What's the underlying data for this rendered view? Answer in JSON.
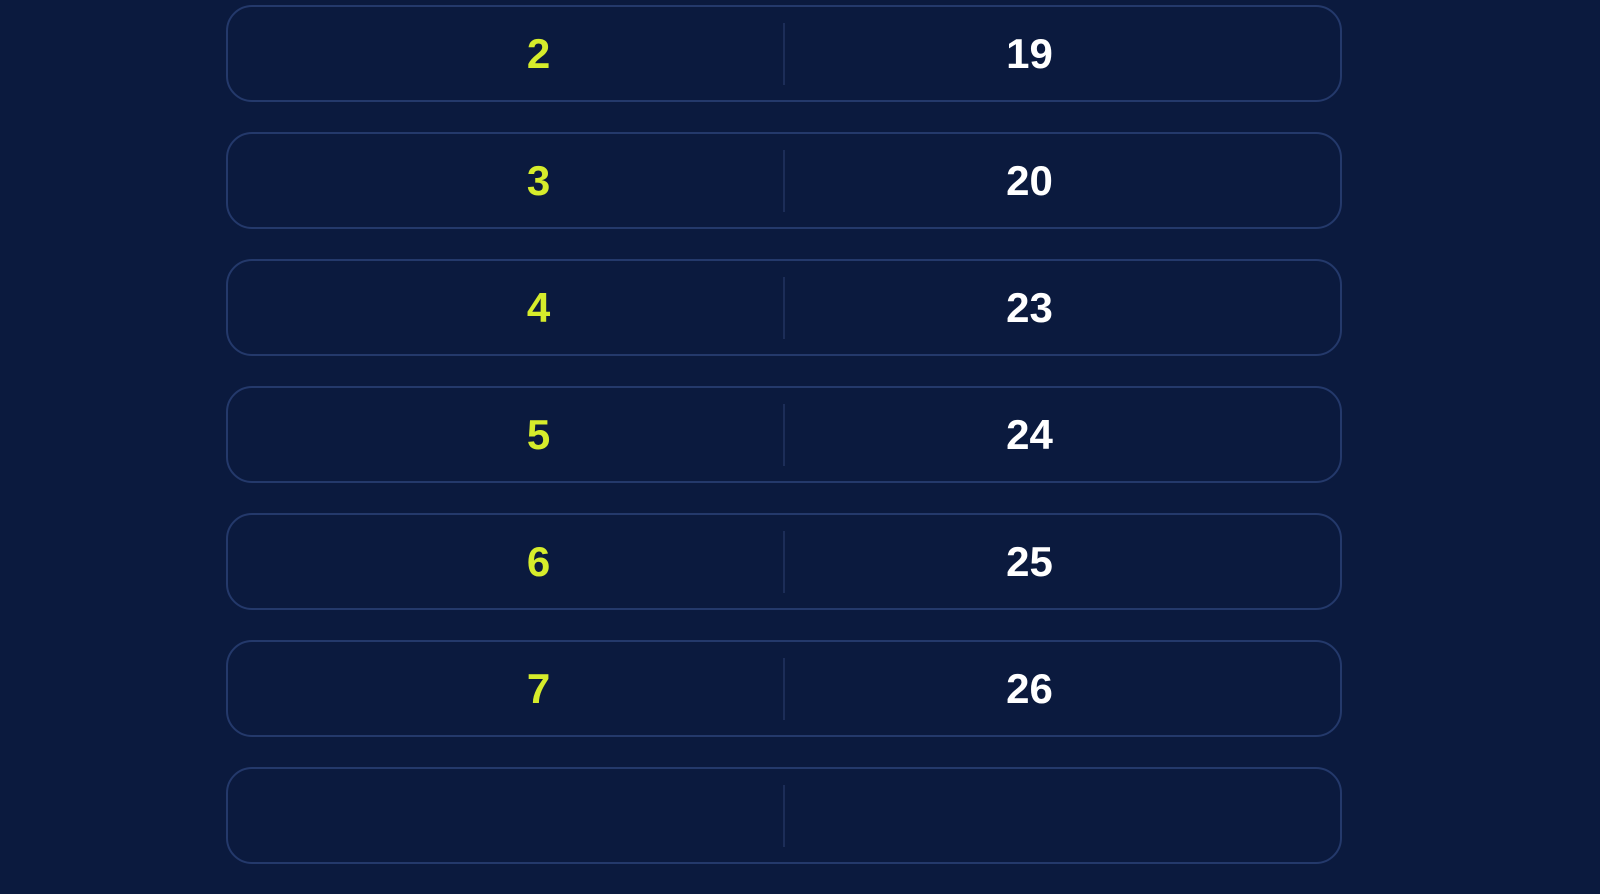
{
  "rows": [
    {
      "left": "2",
      "right": "19"
    },
    {
      "left": "3",
      "right": "20"
    },
    {
      "left": "4",
      "right": "23"
    },
    {
      "left": "5",
      "right": "24"
    },
    {
      "left": "6",
      "right": "25"
    },
    {
      "left": "7",
      "right": "26"
    },
    {
      "left": "",
      "right": ""
    }
  ],
  "colors": {
    "background": "#0b1a3e",
    "left_text": "#d6ec2b",
    "right_text": "#ffffff",
    "border": "#24396b"
  }
}
